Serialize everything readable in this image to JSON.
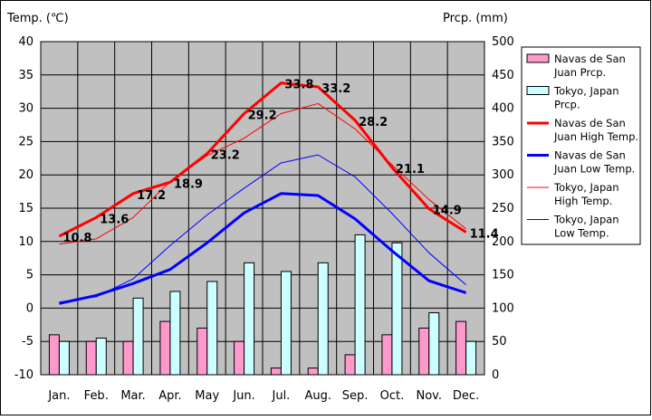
{
  "chart_data": {
    "type": "bar+line",
    "categories": [
      "Jan.",
      "Feb.",
      "Mar.",
      "Apr.",
      "May",
      "Jun.",
      "Jul.",
      "Aug.",
      "Sep.",
      "Oct.",
      "Nov.",
      "Dec."
    ],
    "y_left": {
      "title": "Temp. (℃)",
      "min": -10,
      "max": 40,
      "step": 5
    },
    "y_right": {
      "title": "Prcp. (mm)",
      "min": 0,
      "max": 500,
      "step": 50
    },
    "grid": true,
    "legend_position": "right",
    "bar_series": [
      {
        "name": "Navas de San Juan Prcp.",
        "legend_lines": [
          "Navas de San",
          "Juan Prcp."
        ],
        "color": "#ff99cc",
        "values": [
          60,
          50,
          50,
          80,
          70,
          50,
          10,
          10,
          30,
          60,
          70,
          80
        ]
      },
      {
        "name": "Tokyo, Japan Prcp.",
        "legend_lines": [
          "Tokyo, Japan",
          "Prcp."
        ],
        "color": "#ccffff",
        "values": [
          50,
          55,
          115,
          125,
          140,
          168,
          155,
          168,
          210,
          198,
          93,
          50
        ]
      }
    ],
    "line_series": [
      {
        "name": "Navas de San Juan High Temp.",
        "legend_lines": [
          "Navas de San",
          "Juan High Temp."
        ],
        "color": "#ff0000",
        "width": 3,
        "values": [
          10.8,
          13.6,
          17.2,
          18.9,
          23.2,
          29.2,
          33.8,
          33.2,
          28.2,
          21.1,
          14.9,
          11.4
        ],
        "data_labels": [
          "10.8",
          "13.6",
          "17.2",
          "18.9",
          "23.2",
          "29.2",
          "33.8",
          "33.2",
          "28.2",
          "21.1",
          "14.9",
          "11.4"
        ]
      },
      {
        "name": "Navas de San Juan Low Temp.",
        "legend_lines": [
          "Navas de San",
          "Juan Low Temp."
        ],
        "color": "#0000ff",
        "width": 3,
        "values": [
          0.7,
          1.9,
          3.7,
          5.8,
          9.8,
          14.3,
          17.2,
          16.9,
          13.4,
          8.6,
          4.1,
          2.3
        ]
      },
      {
        "name": "Tokyo, Japan High Temp.",
        "legend_lines": [
          "Tokyo, Japan",
          "High Temp."
        ],
        "color": "#ff0000",
        "width": 1,
        "values": [
          9.6,
          10.4,
          13.6,
          19.0,
          22.9,
          25.5,
          29.2,
          30.7,
          26.9,
          21.5,
          16.3,
          11.9
        ]
      },
      {
        "name": "Tokyo, Japan Low Temp.",
        "legend_lines": [
          "Tokyo, Japan",
          "Low Temp."
        ],
        "color": "#0000ff",
        "width": 1,
        "values": [
          0.9,
          1.7,
          4.4,
          9.4,
          14.0,
          18.0,
          21.8,
          23.0,
          19.7,
          14.2,
          8.3,
          3.5
        ]
      }
    ]
  }
}
